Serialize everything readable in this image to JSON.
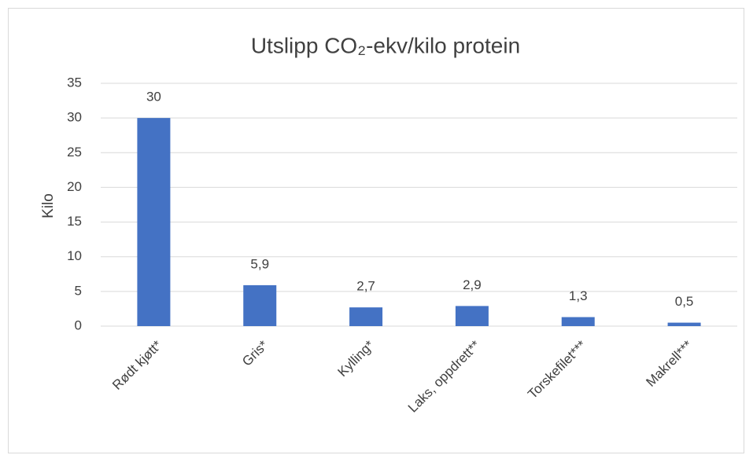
{
  "chart_data": {
    "type": "bar",
    "title": "Utslipp CO₂-ekv/kilo protein",
    "y_label": "Kilo",
    "categories": [
      "Rødt kjøtt*",
      "Gris*",
      "Kylling*",
      "Laks, oppdrett**",
      "Torskefilet***",
      "Makrell***"
    ],
    "values": [
      30,
      5.9,
      2.7,
      2.9,
      1.3,
      0.5
    ],
    "value_labels": [
      "30",
      "5,9",
      "2,7",
      "2,9",
      "1,3",
      "0,5"
    ],
    "color": "#4472c4",
    "ylim": [
      0,
      35
    ],
    "yticks": [
      0,
      5,
      10,
      15,
      20,
      25,
      30,
      35
    ],
    "grid": true
  }
}
